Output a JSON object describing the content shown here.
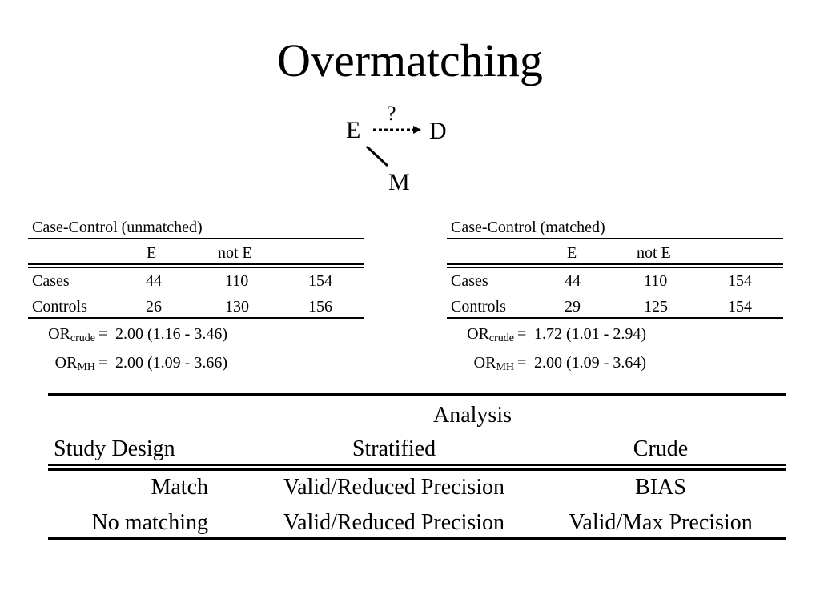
{
  "slide": {
    "title": "Overmatching"
  },
  "diagram": {
    "node_e": "E",
    "node_d": "D",
    "node_m": "M",
    "question": "?"
  },
  "unmatched": {
    "caption": "Case-Control (unmatched)",
    "col_e": "E",
    "col_not_e": "not E",
    "rows": [
      {
        "label": "Cases",
        "e": "44",
        "not_e": "110",
        "total": "154"
      },
      {
        "label": "Controls",
        "e": "26",
        "not_e": "130",
        "total": "156"
      }
    ],
    "or_crude_base": "OR",
    "or_crude_sub": "crude",
    "or_crude_value": "2.00 (1.16 - 3.46)",
    "or_mh_base": "OR",
    "or_mh_sub": "MH",
    "or_mh_value": "2.00 (1.09 - 3.66)",
    "equals": "="
  },
  "matched": {
    "caption": "Case-Control (matched)",
    "col_e": "E",
    "col_not_e": "not E",
    "rows": [
      {
        "label": "Cases",
        "e": "44",
        "not_e": "110",
        "total": "154"
      },
      {
        "label": "Controls",
        "e": "29",
        "not_e": "125",
        "total": "154"
      }
    ],
    "or_crude_base": "OR",
    "or_crude_sub": "crude",
    "or_crude_value": "1.72 (1.01 - 2.94)",
    "or_mh_base": "OR",
    "or_mh_sub": "MH",
    "or_mh_value": "2.00 (1.09 - 3.64)",
    "equals": "="
  },
  "analysis_table": {
    "group_header": "Analysis",
    "headers": [
      "Study Design",
      "Stratified",
      "Crude"
    ],
    "rows": [
      {
        "design": "Match",
        "stratified": "Valid/Reduced Precision",
        "crude": "BIAS"
      },
      {
        "design": "No matching",
        "stratified": "Valid/Reduced Precision",
        "crude": "Valid/Max Precision"
      }
    ]
  }
}
